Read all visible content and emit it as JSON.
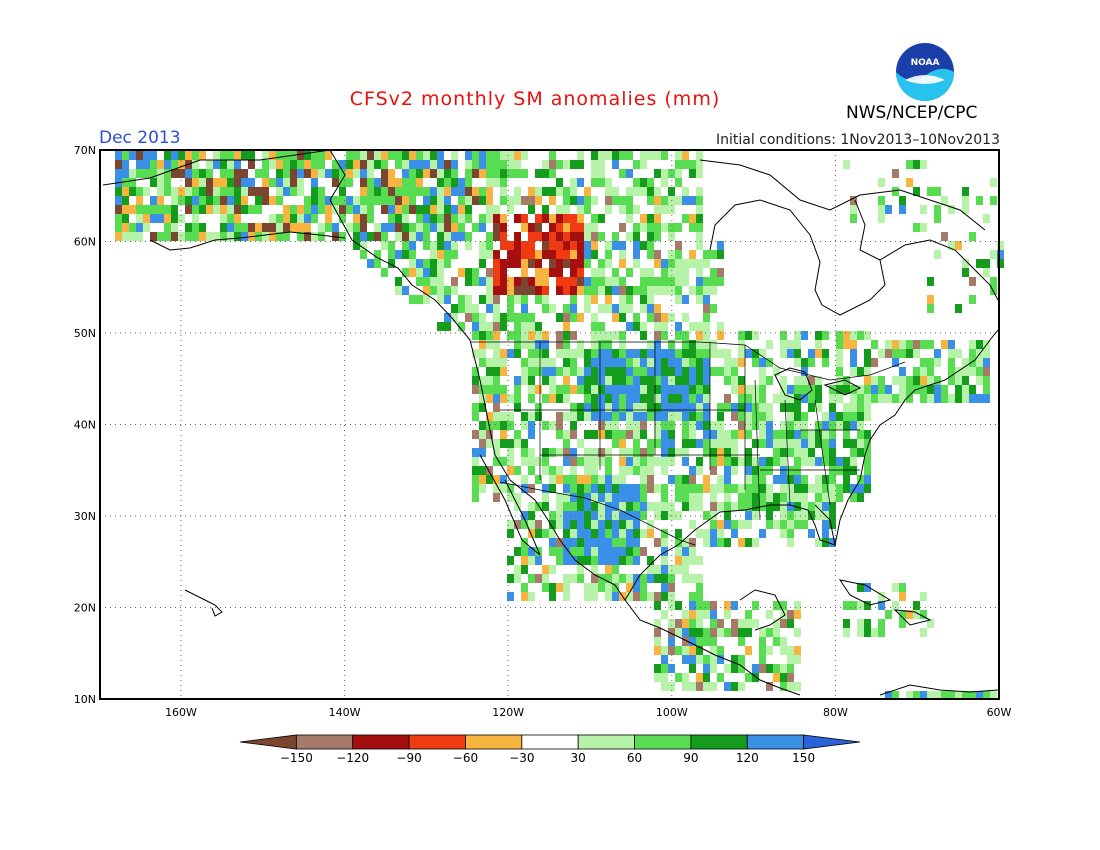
{
  "header": {
    "title": "CFSv2 monthly SM anomalies (mm)",
    "agency": "NWS/NCEP/CPC",
    "logo_text": "NOAA",
    "month": "Dec 2013",
    "initial_conditions": "Initial conditions: 1Nov2013–10Nov2013"
  },
  "map": {
    "lat_labels": [
      "70N",
      "60N",
      "50N",
      "40N",
      "30N",
      "20N",
      "10N"
    ],
    "lon_labels": [
      "160W",
      "140W",
      "120W",
      "100W",
      "80W",
      "60W"
    ]
  },
  "legend": {
    "ticks": [
      "−150",
      "−120",
      "−90",
      "−60",
      "−30",
      "30",
      "60",
      "90",
      "120",
      "150"
    ],
    "colors": [
      "#7b4530",
      "#a67a68",
      "#a50f0f",
      "#f03a12",
      "#f7b440",
      "#ffffff",
      "#b6f3a8",
      "#58dc52",
      "#149c1d",
      "#3a8fe6",
      "#2a62d8"
    ]
  }
}
